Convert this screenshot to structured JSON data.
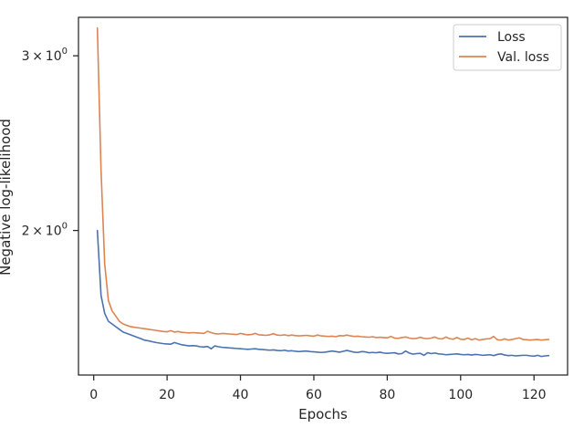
{
  "chart_data": {
    "type": "line",
    "title": "",
    "xlabel": "Epochs",
    "ylabel": "Negative log-likelihood",
    "yscale": "log",
    "xlim": [
      -4.15,
      129.15
    ],
    "ylim": [
      1.43,
      3.28
    ],
    "xticks": [
      0,
      20,
      40,
      60,
      80,
      100,
      120
    ],
    "xtick_labels": [
      "0",
      "20",
      "40",
      "60",
      "80",
      "100",
      "120"
    ],
    "yticks": [
      2,
      3
    ],
    "ytick_labels": [
      {
        "base": "2",
        "mult": "×",
        "pow_base": "10",
        "exp": "0"
      },
      {
        "base": "3",
        "mult": "×",
        "pow_base": "10",
        "exp": "0"
      }
    ],
    "grid": false,
    "legend_position": "upper right",
    "x": [
      1,
      2,
      3,
      4,
      5,
      6,
      7,
      8,
      9,
      10,
      11,
      12,
      13,
      14,
      15,
      16,
      17,
      18,
      19,
      20,
      21,
      22,
      23,
      24,
      25,
      26,
      27,
      28,
      29,
      30,
      31,
      32,
      33,
      34,
      35,
      36,
      37,
      38,
      39,
      40,
      41,
      42,
      43,
      44,
      45,
      46,
      47,
      48,
      49,
      50,
      51,
      52,
      53,
      54,
      55,
      56,
      57,
      58,
      59,
      60,
      61,
      62,
      63,
      64,
      65,
      66,
      67,
      68,
      69,
      70,
      71,
      72,
      73,
      74,
      75,
      76,
      77,
      78,
      79,
      80,
      81,
      82,
      83,
      84,
      85,
      86,
      87,
      88,
      89,
      90,
      91,
      92,
      93,
      94,
      95,
      96,
      97,
      98,
      99,
      100,
      101,
      102,
      103,
      104,
      105,
      106,
      107,
      108,
      109,
      110,
      111,
      112,
      113,
      114,
      115,
      116,
      117,
      118,
      119,
      120,
      121,
      122,
      123,
      124
    ],
    "series": [
      {
        "name": "Loss",
        "color": "#4c72b0",
        "values": [
          2.0,
          1.72,
          1.65,
          1.62,
          1.61,
          1.6,
          1.59,
          1.58,
          1.575,
          1.57,
          1.565,
          1.56,
          1.555,
          1.55,
          1.548,
          1.545,
          1.542,
          1.54,
          1.538,
          1.537,
          1.536,
          1.542,
          1.538,
          1.534,
          1.532,
          1.53,
          1.531,
          1.53,
          1.527,
          1.526,
          1.528,
          1.52,
          1.53,
          1.527,
          1.525,
          1.524,
          1.523,
          1.522,
          1.521,
          1.52,
          1.519,
          1.518,
          1.519,
          1.52,
          1.518,
          1.517,
          1.516,
          1.515,
          1.516,
          1.514,
          1.513,
          1.515,
          1.512,
          1.513,
          1.511,
          1.51,
          1.511,
          1.512,
          1.51,
          1.509,
          1.508,
          1.507,
          1.508,
          1.51,
          1.512,
          1.51,
          1.508,
          1.511,
          1.514,
          1.511,
          1.508,
          1.507,
          1.51,
          1.509,
          1.506,
          1.507,
          1.506,
          1.508,
          1.505,
          1.504,
          1.505,
          1.506,
          1.502,
          1.503,
          1.512,
          1.505,
          1.501,
          1.503,
          1.504,
          1.497,
          1.506,
          1.503,
          1.505,
          1.502,
          1.501,
          1.499,
          1.5,
          1.501,
          1.502,
          1.5,
          1.499,
          1.5,
          1.498,
          1.5,
          1.499,
          1.497,
          1.498,
          1.499,
          1.496,
          1.5,
          1.502,
          1.498,
          1.496,
          1.497,
          1.495,
          1.496,
          1.497,
          1.497,
          1.495,
          1.494,
          1.497,
          1.493,
          1.495,
          1.496
        ]
      },
      {
        "name": "Val. loss",
        "color": "#dd8452",
        "values": [
          3.2,
          2.3,
          1.85,
          1.7,
          1.66,
          1.64,
          1.62,
          1.61,
          1.605,
          1.6,
          1.598,
          1.596,
          1.594,
          1.592,
          1.59,
          1.588,
          1.586,
          1.584,
          1.582,
          1.581,
          1.585,
          1.58,
          1.582,
          1.579,
          1.578,
          1.577,
          1.578,
          1.577,
          1.576,
          1.575,
          1.583,
          1.578,
          1.574,
          1.573,
          1.575,
          1.574,
          1.573,
          1.572,
          1.571,
          1.575,
          1.572,
          1.57,
          1.571,
          1.575,
          1.57,
          1.569,
          1.568,
          1.57,
          1.574,
          1.569,
          1.568,
          1.57,
          1.567,
          1.569,
          1.567,
          1.566,
          1.567,
          1.568,
          1.566,
          1.565,
          1.569,
          1.566,
          1.565,
          1.564,
          1.565,
          1.563,
          1.567,
          1.566,
          1.569,
          1.566,
          1.564,
          1.565,
          1.563,
          1.562,
          1.561,
          1.563,
          1.56,
          1.561,
          1.56,
          1.559,
          1.564,
          1.558,
          1.557,
          1.56,
          1.562,
          1.558,
          1.556,
          1.557,
          1.561,
          1.557,
          1.556,
          1.558,
          1.562,
          1.556,
          1.555,
          1.562,
          1.556,
          1.554,
          1.56,
          1.554,
          1.553,
          1.558,
          1.552,
          1.556,
          1.551,
          1.553,
          1.555,
          1.556,
          1.564,
          1.552,
          1.551,
          1.555,
          1.551,
          1.553,
          1.556,
          1.559,
          1.553,
          1.552,
          1.551,
          1.552,
          1.553,
          1.551,
          1.552,
          1.553
        ]
      }
    ]
  }
}
